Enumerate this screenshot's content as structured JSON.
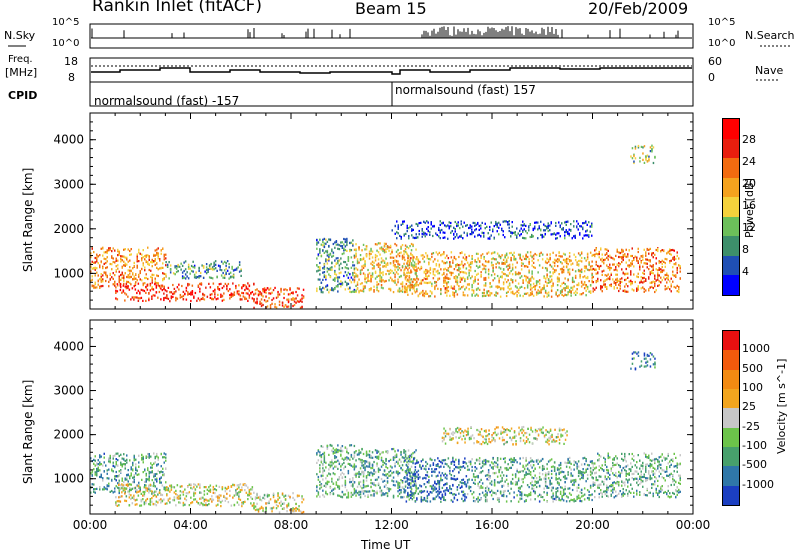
{
  "header": {
    "station": "Rankin Inlet (fitACF)",
    "beam": "Beam 15",
    "date": "20/Feb/2009"
  },
  "colors": {
    "power_scale": [
      "#0000ff",
      "#1f4fb4",
      "#3d8f6b",
      "#6cbf5a",
      "#f5d23c",
      "#f5a21e",
      "#f26b10",
      "#e81e0e",
      "#ff0000"
    ],
    "velocity_scale": [
      "#1b3fc1",
      "#2f77a8",
      "#47a06c",
      "#6cc44a",
      "#c7c7c7",
      "#f2a51e",
      "#f28a12",
      "#f25a0c",
      "#e81010"
    ]
  },
  "top_panels": {
    "nsky_label": "N.Sky",
    "nsky_ticks": [
      "10^5",
      "10^0"
    ],
    "nsearch_label": "N.Search",
    "nsearch_ticks": [
      "10^5",
      "10^0"
    ],
    "freq_label": "Freq.",
    "freq_unit": "[MHz]",
    "freq_ticks": [
      "18",
      "8"
    ],
    "nave_label": "Nave",
    "nave_ticks": [
      "60",
      "0"
    ],
    "cpid_label": "CPID",
    "cpid_segments": [
      "normalsound (fast) -157",
      "normalsound (fast) 157"
    ]
  },
  "chart_data": [
    {
      "type": "heatmap",
      "title": "",
      "xlabel": "Time UT",
      "ylabel": "Slant Range [km]",
      "colorbar_label": "Power [dB]",
      "colorbar_ticks": [
        "28",
        "24",
        "20",
        "16",
        "12",
        "8",
        "4"
      ],
      "x_ticks": [
        "00:00",
        "04:00",
        "08:00",
        "12:00",
        "16:00",
        "20:00",
        "00:00"
      ],
      "y_ticks": [
        "4000",
        "3000",
        "2000",
        "1000"
      ],
      "xlim": [
        0,
        24
      ],
      "ylim": [
        200,
        4600
      ],
      "bands": [
        {
          "x_start": 0.0,
          "x_end": 3.0,
          "y_low": 700,
          "y_high": 1600,
          "level": 0.65
        },
        {
          "x_start": 1.0,
          "x_end": 6.5,
          "y_low": 400,
          "y_high": 800,
          "level": 0.85
        },
        {
          "x_start": 3.0,
          "x_end": 6.0,
          "y_low": 900,
          "y_high": 1300,
          "level": 0.3
        },
        {
          "x_start": 6.5,
          "x_end": 8.5,
          "y_low": 250,
          "y_high": 700,
          "level": 0.8
        },
        {
          "x_start": 9.0,
          "x_end": 10.5,
          "y_low": 600,
          "y_high": 1800,
          "level": 0.3
        },
        {
          "x_start": 10.5,
          "x_end": 13.0,
          "y_low": 600,
          "y_high": 1700,
          "level": 0.55
        },
        {
          "x_start": 12.5,
          "x_end": 15.0,
          "y_low": 500,
          "y_high": 1500,
          "level": 0.6
        },
        {
          "x_start": 15.0,
          "x_end": 20.0,
          "y_low": 500,
          "y_high": 1500,
          "level": 0.55
        },
        {
          "x_start": 20.0,
          "x_end": 23.5,
          "y_low": 600,
          "y_high": 1600,
          "level": 0.7
        },
        {
          "x_start": 12.0,
          "x_end": 20.0,
          "y_low": 1800,
          "y_high": 2200,
          "level": 0.15
        },
        {
          "x_start": 21.5,
          "x_end": 22.5,
          "y_low": 3500,
          "y_high": 3900,
          "level": 0.4
        }
      ]
    },
    {
      "type": "heatmap",
      "title": "",
      "xlabel": "Time UT",
      "ylabel": "Slant Range [km]",
      "colorbar_label": "Velocity [m s^-1]",
      "colorbar_ticks": [
        "1000",
        "500",
        "100",
        "25",
        "-25",
        "-100",
        "-500",
        "-1000"
      ],
      "x_ticks": [
        "00:00",
        "04:00",
        "08:00",
        "12:00",
        "16:00",
        "20:00",
        "00:00"
      ],
      "y_ticks": [
        "4000",
        "3000",
        "2000",
        "1000"
      ],
      "xlim": [
        0,
        24
      ],
      "ylim": [
        200,
        4600
      ],
      "bands": [
        {
          "x_start": 0.0,
          "x_end": 3.0,
          "y_low": 700,
          "y_high": 1600,
          "level": 0.3
        },
        {
          "x_start": 1.0,
          "x_end": 6.5,
          "y_low": 400,
          "y_high": 900,
          "level": 0.5
        },
        {
          "x_start": 6.5,
          "x_end": 8.5,
          "y_low": 250,
          "y_high": 700,
          "level": 0.5
        },
        {
          "x_start": 9.0,
          "x_end": 10.5,
          "y_low": 600,
          "y_high": 1800,
          "level": 0.35
        },
        {
          "x_start": 10.5,
          "x_end": 13.0,
          "y_low": 600,
          "y_high": 1700,
          "level": 0.3
        },
        {
          "x_start": 12.5,
          "x_end": 15.0,
          "y_low": 500,
          "y_high": 1500,
          "level": 0.15
        },
        {
          "x_start": 15.0,
          "x_end": 20.0,
          "y_low": 500,
          "y_high": 1500,
          "level": 0.3
        },
        {
          "x_start": 20.0,
          "x_end": 23.5,
          "y_low": 600,
          "y_high": 1600,
          "level": 0.35
        },
        {
          "x_start": 14.0,
          "x_end": 19.0,
          "y_low": 1800,
          "y_high": 2200,
          "level": 0.5
        },
        {
          "x_start": 21.5,
          "x_end": 22.5,
          "y_low": 3500,
          "y_high": 3900,
          "level": 0.15
        }
      ]
    }
  ]
}
